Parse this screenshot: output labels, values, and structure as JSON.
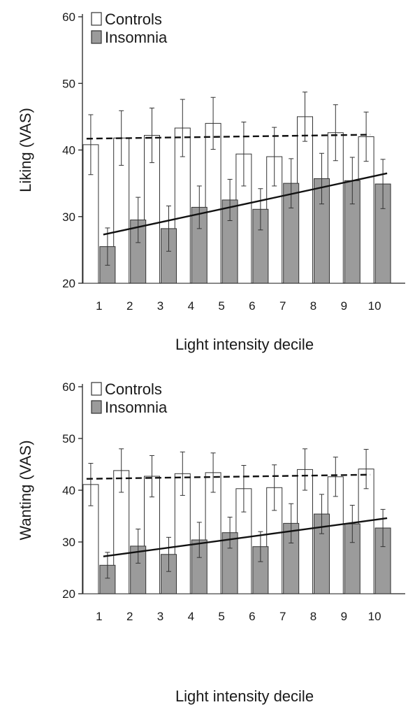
{
  "chart_data": [
    {
      "type": "bar",
      "xlabel": "Light intensity decile",
      "ylabel": "Liking (VAS)",
      "ylim": [
        20,
        60
      ],
      "yticks": [
        20,
        30,
        40,
        50,
        60
      ],
      "categories": [
        "1",
        "2",
        "3",
        "4",
        "5",
        "6",
        "7",
        "8",
        "9",
        "10"
      ],
      "legend": {
        "placement": "top-left"
      },
      "series": [
        {
          "name": "Controls",
          "color": "#ffffff",
          "values": [
            40.8,
            41.8,
            42.2,
            43.3,
            44.0,
            39.4,
            39.0,
            45.0,
            42.6,
            42.0
          ],
          "error": [
            4.5,
            4.1,
            4.1,
            4.3,
            3.9,
            4.8,
            4.4,
            3.7,
            4.2,
            3.7
          ],
          "trend": {
            "style": "dashed",
            "start": 41.7,
            "end": 42.3
          }
        },
        {
          "name": "Insomnia",
          "color": "#9b9b9b",
          "values": [
            25.5,
            29.5,
            28.2,
            31.4,
            32.5,
            31.1,
            35.0,
            35.7,
            35.4,
            34.9
          ],
          "error": [
            2.8,
            3.4,
            3.4,
            3.2,
            3.1,
            3.1,
            3.7,
            3.8,
            3.5,
            3.7
          ],
          "trend": {
            "style": "solid",
            "start": 27.3,
            "end": 36.5
          }
        }
      ]
    },
    {
      "type": "bar",
      "xlabel": "Light intensity decile",
      "ylabel": "Wanting (VAS)",
      "ylim": [
        20,
        60
      ],
      "yticks": [
        20,
        30,
        40,
        50,
        60
      ],
      "categories": [
        "1",
        "2",
        "3",
        "4",
        "5",
        "6",
        "7",
        "8",
        "9",
        "10"
      ],
      "legend": {
        "placement": "top-left"
      },
      "series": [
        {
          "name": "Controls",
          "color": "#ffffff",
          "values": [
            41.1,
            43.8,
            42.7,
            43.2,
            43.4,
            40.3,
            40.5,
            44.0,
            42.6,
            44.1
          ],
          "error": [
            4.1,
            4.2,
            4.0,
            4.2,
            3.8,
            4.5,
            4.4,
            4.0,
            3.8,
            3.8
          ],
          "trend": {
            "style": "dashed",
            "start": 42.2,
            "end": 43.0
          }
        },
        {
          "name": "Insomnia",
          "color": "#9b9b9b",
          "values": [
            25.5,
            29.2,
            27.6,
            30.4,
            31.8,
            29.1,
            33.6,
            35.4,
            33.5,
            32.7
          ],
          "error": [
            2.5,
            3.3,
            3.3,
            3.4,
            3.0,
            2.9,
            3.8,
            3.8,
            3.6,
            3.6
          ],
          "trend": {
            "style": "solid",
            "start": 27.2,
            "end": 34.6
          }
        }
      ]
    }
  ]
}
